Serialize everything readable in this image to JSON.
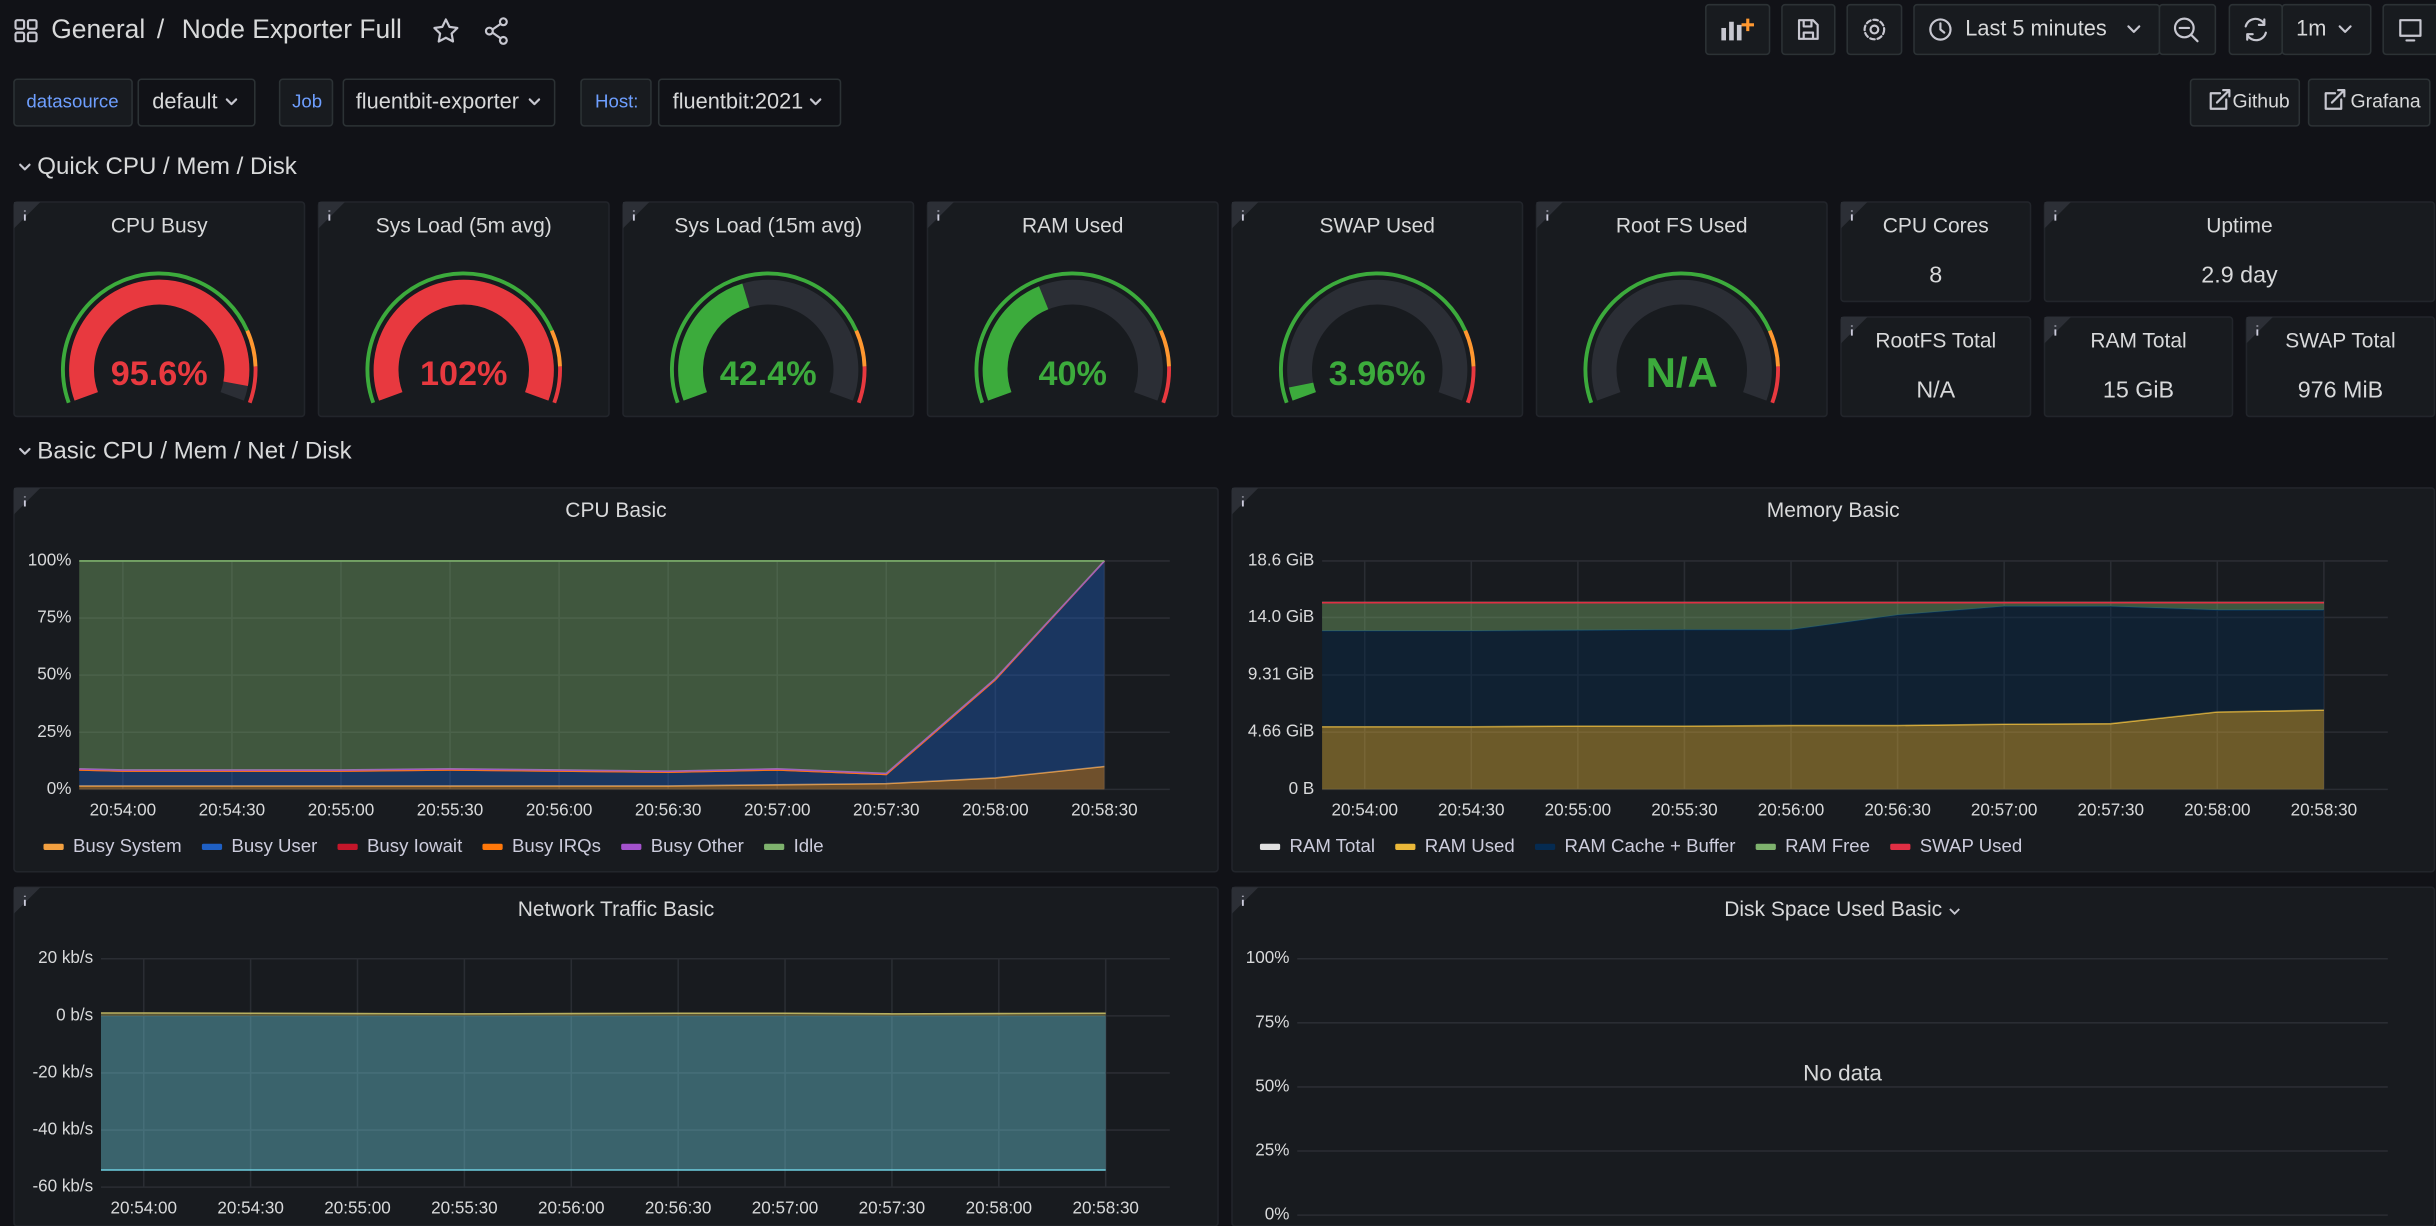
{
  "header": {
    "folder": "General",
    "separator": "/",
    "title": "Node Exporter Full",
    "time_range": "Last 5 minutes",
    "refresh": "1m"
  },
  "variables": [
    {
      "label": "datasource",
      "value": "default"
    },
    {
      "label": "Job",
      "value": "fluentbit-exporter"
    },
    {
      "label": "Host:",
      "value": "fluentbit:2021"
    }
  ],
  "links": [
    "Github",
    "Grafana"
  ],
  "rows": [
    "Quick CPU / Mem / Disk",
    "Basic CPU / Mem / Net / Disk"
  ],
  "gauges": [
    {
      "type": "gauge",
      "title": "CPU Busy",
      "value": 95.6,
      "value_label": "95.6%",
      "color": "#e8393f",
      "ylim": [
        0,
        100
      ]
    },
    {
      "type": "gauge",
      "title": "Sys Load (5m avg)",
      "value": 102,
      "value_label": "102%",
      "color": "#e8393f",
      "ylim": [
        0,
        100
      ]
    },
    {
      "type": "gauge",
      "title": "Sys Load (15m avg)",
      "value": 42.4,
      "value_label": "42.4%",
      "color": "#3cab3c",
      "ylim": [
        0,
        100
      ]
    },
    {
      "type": "gauge",
      "title": "RAM Used",
      "value": 40,
      "value_label": "40%",
      "color": "#3cab3c",
      "ylim": [
        0,
        100
      ]
    },
    {
      "type": "gauge",
      "title": "SWAP Used",
      "value": 3.96,
      "value_label": "3.96%",
      "color": "#3cab3c",
      "ylim": [
        0,
        100
      ]
    },
    {
      "type": "gauge",
      "title": "Root FS Used",
      "value": null,
      "value_label": "N/A",
      "color": "#3cab3c",
      "ylim": [
        0,
        100
      ]
    }
  ],
  "stats": [
    {
      "title": "CPU Cores",
      "value": "8"
    },
    {
      "title": "Uptime",
      "value": "2.9 day"
    },
    {
      "title": "RootFS Total",
      "value": "N/A"
    },
    {
      "title": "RAM Total",
      "value": "15 GiB"
    },
    {
      "title": "SWAP Total",
      "value": "976 MiB"
    }
  ],
  "chart_data": [
    {
      "type": "area",
      "title": "CPU Basic",
      "stacked": true,
      "x": [
        "20:53:48",
        "20:54:00",
        "20:54:30",
        "20:55:00",
        "20:55:30",
        "20:56:00",
        "20:56:30",
        "20:57:00",
        "20:57:30",
        "20:58:00",
        "20:58:30"
      ],
      "xlim": [
        "20:53:48",
        "20:58:48"
      ],
      "xticks": [
        "20:54:00",
        "20:54:30",
        "20:55:00",
        "20:55:30",
        "20:56:00",
        "20:56:30",
        "20:57:00",
        "20:57:30",
        "20:58:00",
        "20:58:30"
      ],
      "ylim": [
        0,
        100
      ],
      "yticks": [
        {
          "value": 0,
          "label": "0%"
        },
        {
          "value": 25,
          "label": "25%"
        },
        {
          "value": 50,
          "label": "50%"
        },
        {
          "value": 75,
          "label": "75%"
        },
        {
          "value": 100,
          "label": "100%"
        }
      ],
      "series": [
        {
          "name": "Busy System",
          "color": "#f2a040",
          "values": [
            1.5,
            1.5,
            1.5,
            1.5,
            1.5,
            1.5,
            1.5,
            2,
            2.5,
            5,
            10
          ]
        },
        {
          "name": "Busy User",
          "color": "#1f60c4",
          "values": [
            7,
            6.5,
            6.5,
            6.5,
            7,
            6.5,
            6,
            6.5,
            4,
            43,
            90
          ]
        },
        {
          "name": "Busy Iowait",
          "color": "#c4162a",
          "values": [
            0,
            0,
            0,
            0,
            0,
            0,
            0,
            0,
            0,
            0,
            0
          ]
        },
        {
          "name": "Busy IRQs",
          "color": "#ff780a",
          "values": [
            0,
            0,
            0,
            0,
            0,
            0,
            0,
            0,
            0,
            0,
            0
          ]
        },
        {
          "name": "Busy Other",
          "color": "#a352cc",
          "values": [
            0.5,
            0.5,
            0.5,
            0.5,
            0.5,
            0.5,
            0.5,
            0.5,
            0.5,
            0.5,
            0
          ]
        },
        {
          "name": "Idle",
          "color": "#7eb26d",
          "values": [
            91,
            91.5,
            91.5,
            91.5,
            91,
            91.5,
            92,
            91,
            93,
            51.5,
            0
          ]
        }
      ]
    },
    {
      "type": "area",
      "title": "Memory Basic",
      "stacked": true,
      "x": [
        "20:53:48",
        "20:54:00",
        "20:54:30",
        "20:55:00",
        "20:55:30",
        "20:56:00",
        "20:56:30",
        "20:57:00",
        "20:57:30",
        "20:58:00",
        "20:58:30"
      ],
      "xlim": [
        "20:53:48",
        "20:58:48"
      ],
      "xticks": [
        "20:54:00",
        "20:54:30",
        "20:55:00",
        "20:55:30",
        "20:56:00",
        "20:56:30",
        "20:57:00",
        "20:57:30",
        "20:58:00",
        "20:58:30"
      ],
      "ylim": [
        0,
        18.6
      ],
      "yticks": [
        {
          "value": 0,
          "label": "0 B"
        },
        {
          "value": 4.66,
          "label": "4.66 GiB"
        },
        {
          "value": 9.31,
          "label": "9.31 GiB"
        },
        {
          "value": 14.0,
          "label": "14.0 GiB"
        },
        {
          "value": 18.6,
          "label": "18.6 GiB"
        }
      ],
      "series": [
        {
          "name": "RAM Total",
          "color": "#e0e0e0",
          "stack": false,
          "fill": false,
          "values": [
            15.2,
            15.2,
            15.2,
            15.2,
            15.2,
            15.2,
            15.2,
            15.2,
            15.2,
            15.2,
            15.2
          ]
        },
        {
          "name": "RAM Used",
          "color": "#eab839",
          "values": [
            5.1,
            5.1,
            5.1,
            5.15,
            5.15,
            5.2,
            5.2,
            5.3,
            5.35,
            6.3,
            6.45
          ]
        },
        {
          "name": "RAM Cache + Buffer",
          "color": "#052b51",
          "values": [
            7.8,
            7.8,
            7.8,
            7.8,
            7.85,
            7.8,
            9.0,
            9.6,
            9.55,
            8.3,
            8.15
          ]
        },
        {
          "name": "RAM Free",
          "color": "#7eb26d",
          "values": [
            2.3,
            2.3,
            2.3,
            2.25,
            2.2,
            2.2,
            1.0,
            0.3,
            0.3,
            0.6,
            0.6
          ]
        },
        {
          "name": "SWAP Used",
          "color": "#e02f44",
          "values": [
            0,
            0,
            0,
            0,
            0,
            0,
            0,
            0,
            0,
            0,
            0
          ]
        }
      ]
    },
    {
      "type": "area",
      "title": "Network Traffic Basic",
      "stacked": false,
      "x": [
        "20:53:48",
        "20:54:00",
        "20:54:30",
        "20:55:00",
        "20:55:30",
        "20:56:00",
        "20:56:30",
        "20:57:00",
        "20:57:30",
        "20:58:00",
        "20:58:30"
      ],
      "xlim": [
        "20:53:48",
        "20:58:48"
      ],
      "xticks": [
        "20:54:00",
        "20:54:30",
        "20:55:00",
        "20:55:30",
        "20:56:00",
        "20:56:30",
        "20:57:00",
        "20:57:30",
        "20:58:00",
        "20:58:30"
      ],
      "ylim": [
        -60,
        20
      ],
      "yticks": [
        {
          "value": -60,
          "label": "-60 kb/s"
        },
        {
          "value": -40,
          "label": "-40 kb/s"
        },
        {
          "value": -20,
          "label": "-20 kb/s"
        },
        {
          "value": 0,
          "label": "0 b/s"
        },
        {
          "value": 20,
          "label": "20 kb/s"
        }
      ],
      "series": [
        {
          "color": "#6ed0e0",
          "values": [
            -54,
            -54,
            -54,
            -54,
            -54,
            -54,
            -54,
            -54,
            -54,
            -54,
            -54
          ]
        },
        {
          "color": "#b8b060",
          "values": [
            1,
            1,
            0.9,
            0.8,
            0.7,
            0.8,
            0.9,
            0.9,
            0.7,
            0.8,
            0.9
          ]
        }
      ]
    },
    {
      "type": "line",
      "title": "Disk Space Used Basic",
      "message": "No data",
      "ylim": [
        0,
        100
      ],
      "yticks": [
        {
          "value": 0,
          "label": "0%"
        },
        {
          "value": 25,
          "label": "25%"
        },
        {
          "value": 50,
          "label": "50%"
        },
        {
          "value": 75,
          "label": "75%"
        },
        {
          "value": 100,
          "label": "100%"
        }
      ],
      "series": []
    }
  ]
}
